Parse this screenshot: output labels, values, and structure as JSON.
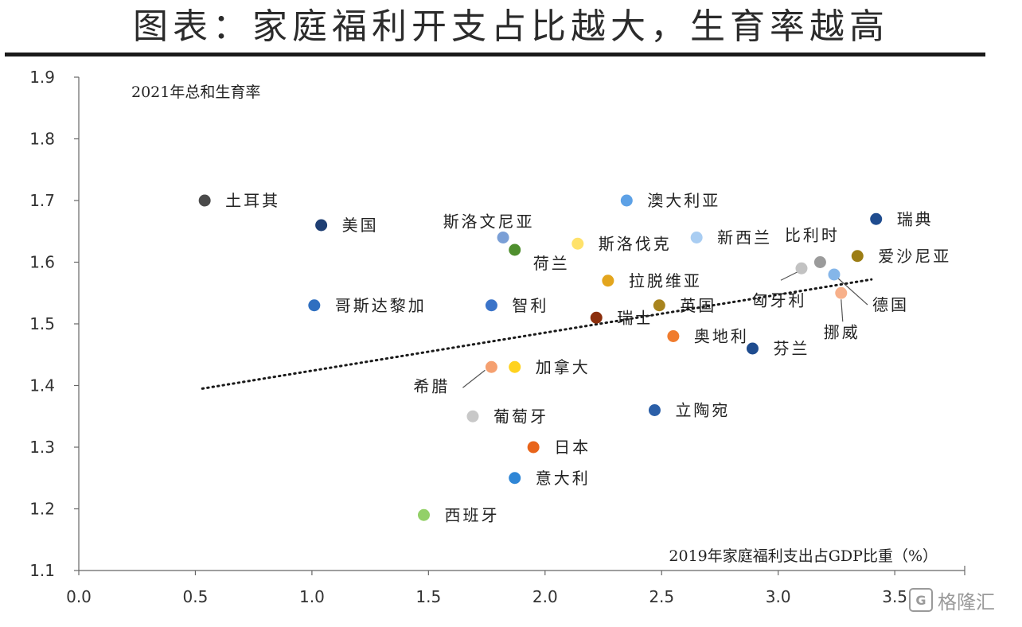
{
  "header": {
    "title": "图表：家庭福利开支占比越大，生育率越高"
  },
  "watermark": {
    "text": "格隆汇",
    "glyph": "G"
  },
  "chart_data": {
    "type": "scatter",
    "title": "图表：家庭福利开支占比越大，生育率越高",
    "xlabel": "2019年家庭福利支出占GDP比重（%）",
    "ylabel": "2021年总和生育率",
    "xlim": [
      0,
      3.8
    ],
    "ylim": [
      1.1,
      1.9
    ],
    "xticks": [
      "0.0",
      "0.5",
      "1.0",
      "1.5",
      "2.0",
      "2.5",
      "3.0",
      "3.5"
    ],
    "yticks": [
      "1.1",
      "1.2",
      "1.3",
      "1.4",
      "1.5",
      "1.6",
      "1.7",
      "1.8",
      "1.9"
    ],
    "grid": false,
    "legend": "none",
    "trendline": {
      "style": "dotted",
      "x": [
        0.53,
        3.4
      ],
      "y": [
        1.395,
        1.572
      ]
    },
    "points": [
      {
        "label": "土耳其",
        "x": 0.54,
        "y": 1.7,
        "color": "#4a4a4a"
      },
      {
        "label": "美国",
        "x": 1.04,
        "y": 1.66,
        "color": "#1f3f73"
      },
      {
        "label": "斯洛文尼亚",
        "x": 1.82,
        "y": 1.64,
        "color": "#7a9fd6"
      },
      {
        "label": "荷兰",
        "x": 1.87,
        "y": 1.62,
        "color": "#4f8f2e"
      },
      {
        "label": "斯洛伐克",
        "x": 2.14,
        "y": 1.63,
        "color": "#ffe26b"
      },
      {
        "label": "澳大利亚",
        "x": 2.35,
        "y": 1.7,
        "color": "#5da1e6"
      },
      {
        "label": "新西兰",
        "x": 2.65,
        "y": 1.64,
        "color": "#a9cdf2"
      },
      {
        "label": "比利时",
        "x": 3.18,
        "y": 1.6,
        "color": "#9b9b9b"
      },
      {
        "label": "瑞典",
        "x": 3.42,
        "y": 1.67,
        "color": "#1f4c8f"
      },
      {
        "label": "爱沙尼亚",
        "x": 3.34,
        "y": 1.61,
        "color": "#9c7d14"
      },
      {
        "label": "匈牙利",
        "x": 3.1,
        "y": 1.59,
        "color": "#c2c2c2"
      },
      {
        "label": "德国",
        "x": 3.24,
        "y": 1.58,
        "color": "#85b6e9"
      },
      {
        "label": "挪威",
        "x": 3.27,
        "y": 1.55,
        "color": "#f7b08a"
      },
      {
        "label": "拉脱维亚",
        "x": 2.27,
        "y": 1.57,
        "color": "#e3a51d"
      },
      {
        "label": "哥斯达黎加",
        "x": 1.01,
        "y": 1.53,
        "color": "#2f6fc0"
      },
      {
        "label": "智利",
        "x": 1.77,
        "y": 1.53,
        "color": "#3b74c9"
      },
      {
        "label": "英国",
        "x": 2.49,
        "y": 1.53,
        "color": "#a8841e"
      },
      {
        "label": "瑞士",
        "x": 2.22,
        "y": 1.51,
        "color": "#8b2e0c"
      },
      {
        "label": "奥地利",
        "x": 2.55,
        "y": 1.48,
        "color": "#f07c2e"
      },
      {
        "label": "芬兰",
        "x": 2.89,
        "y": 1.46,
        "color": "#1f4c8f"
      },
      {
        "label": "希腊",
        "x": 1.77,
        "y": 1.43,
        "color": "#f5a070"
      },
      {
        "label": "加拿大",
        "x": 1.87,
        "y": 1.43,
        "color": "#ffd21f"
      },
      {
        "label": "葡萄牙",
        "x": 1.69,
        "y": 1.35,
        "color": "#c8c8c8"
      },
      {
        "label": "立陶宛",
        "x": 2.47,
        "y": 1.36,
        "color": "#2b5fa8"
      },
      {
        "label": "日本",
        "x": 1.95,
        "y": 1.3,
        "color": "#e8641a"
      },
      {
        "label": "意大利",
        "x": 1.87,
        "y": 1.25,
        "color": "#2f86d6"
      },
      {
        "label": "西班牙",
        "x": 1.48,
        "y": 1.19,
        "color": "#93d068"
      }
    ]
  }
}
